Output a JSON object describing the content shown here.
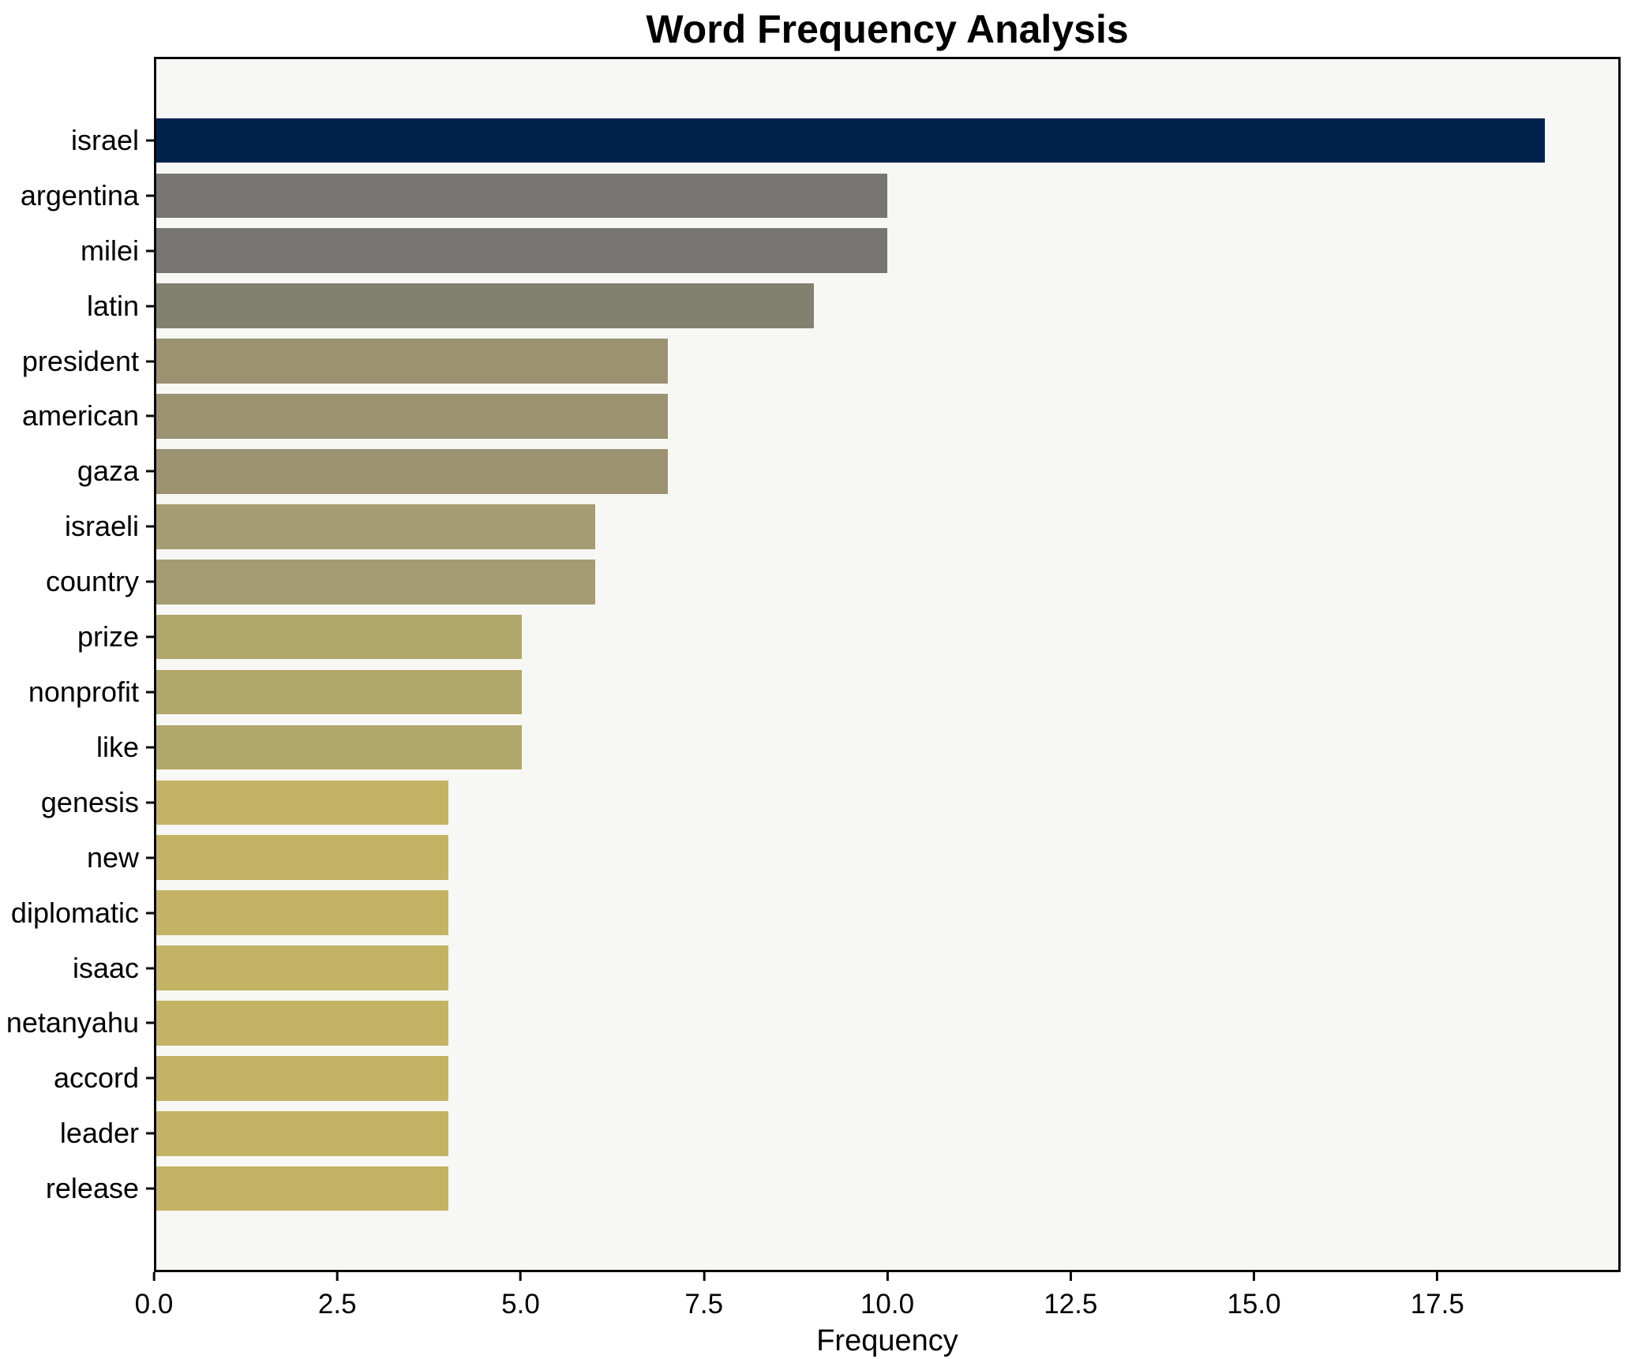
{
  "page": {
    "title": "Word Frequency Analysis"
  },
  "chart_data": {
    "type": "bar",
    "orientation": "horizontal",
    "title": "Word Frequency Analysis",
    "xlabel": "Frequency",
    "ylabel": "",
    "categories": [
      "israel",
      "argentina",
      "milei",
      "latin",
      "president",
      "american",
      "gaza",
      "israeli",
      "country",
      "prize",
      "nonprofit",
      "like",
      "genesis",
      "new",
      "diplomatic",
      "isaac",
      "netanyahu",
      "accord",
      "leader",
      "release"
    ],
    "values": [
      19,
      10,
      10,
      9,
      7,
      7,
      7,
      6,
      6,
      5,
      5,
      5,
      4,
      4,
      4,
      4,
      4,
      4,
      4,
      4
    ],
    "bar_colors": [
      "#01224d",
      "#767572",
      "#767572",
      "#82806f",
      "#9a9271",
      "#9a9271",
      "#9a9271",
      "#a59c71",
      "#a59c71",
      "#b2a76a",
      "#b2a76a",
      "#b2a76a",
      "#c4b364",
      "#c4b364",
      "#c4b364",
      "#c4b364",
      "#c4b364",
      "#c4b364",
      "#c4b364",
      "#c4b364"
    ],
    "xlim": [
      0,
      20
    ],
    "xticks": [
      0,
      2.5,
      5,
      7.5,
      10,
      12.5,
      15,
      17.5
    ],
    "xtick_labels": [
      "0.0",
      "2.5",
      "5.0",
      "7.5",
      "10.0",
      "12.5",
      "15.0",
      "17.5"
    ],
    "grid": false,
    "legend": false,
    "bar_height_frac": 0.81,
    "colors": {
      "figure_bg": "#ffffff",
      "plot_bg": "#f7f7f5",
      "axis": "#0a0a0a",
      "text": "#000000"
    }
  }
}
